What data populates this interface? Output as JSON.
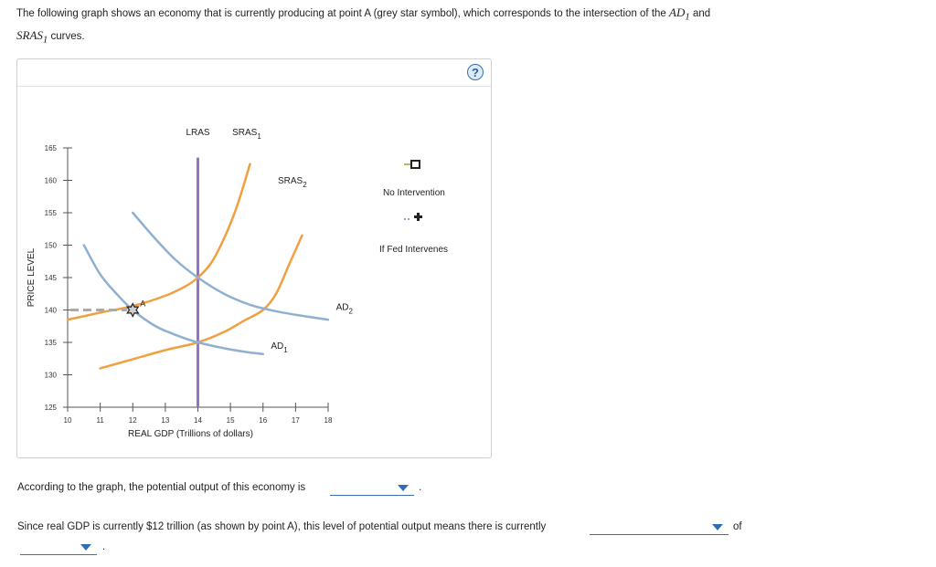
{
  "intro": {
    "text1": "The following graph shows an economy that is currently producing at point A (grey star symbol), which corresponds to the intersection of the ",
    "ad_symbol": "AD",
    "ad_sub": "1",
    "and": " and",
    "sras_symbol": "SRAS",
    "sras_sub": "1",
    "text2": " curves."
  },
  "help_label": "?",
  "legend": {
    "no_intervention": "No Intervention",
    "fed_intervenes": "If Fed Intervenes"
  },
  "questions": {
    "q1": "According to the graph, the potential output of this economy is",
    "q1_end": ".",
    "q2": "Since real GDP is currently $12 trillion (as shown by point A), this level of potential output means there is currently",
    "q2_end": "of",
    "q3_end": "."
  },
  "colors": {
    "ad": "#8fb0d0",
    "sras": "#f0a040",
    "lras": "#9b6fd0",
    "dashed": "#aaaaaa",
    "dropdown": "#2f6db6"
  },
  "chart_data": {
    "type": "line",
    "xlabel": "REAL GDP (Trillions of dollars)",
    "ylabel": "PRICE LEVEL",
    "xlim": [
      10,
      18
    ],
    "ylim": [
      125,
      165
    ],
    "x_ticks": [
      10,
      11,
      12,
      13,
      14,
      15,
      16,
      17,
      18
    ],
    "y_ticks": [
      125,
      130,
      135,
      140,
      145,
      150,
      155,
      160,
      165
    ],
    "lras": {
      "label": "LRAS",
      "x": 14
    },
    "series": [
      {
        "name": "SRAS",
        "sub": "1",
        "kind": "sras",
        "points": [
          [
            10,
            138.5
          ],
          [
            11,
            139.6
          ],
          [
            12,
            140.6
          ],
          [
            13,
            142.2
          ],
          [
            13.6,
            143.6
          ],
          [
            14,
            145
          ],
          [
            14.4,
            147.2
          ],
          [
            14.8,
            151
          ],
          [
            15.2,
            156
          ],
          [
            15.6,
            162.5
          ]
        ]
      },
      {
        "name": "SRAS",
        "sub": "2",
        "kind": "sras",
        "points": [
          [
            11,
            131
          ],
          [
            12,
            132.4
          ],
          [
            13,
            133.8
          ],
          [
            14,
            135
          ],
          [
            14.8,
            136.6
          ],
          [
            15.4,
            138.3
          ],
          [
            16,
            140
          ],
          [
            16.4,
            142.5
          ],
          [
            16.8,
            147
          ],
          [
            17.2,
            151.5
          ]
        ]
      },
      {
        "name": "AD",
        "sub": "1",
        "kind": "ad",
        "points": [
          [
            10.5,
            150
          ],
          [
            11,
            145.5
          ],
          [
            11.5,
            142.5
          ],
          [
            12,
            140
          ],
          [
            12.7,
            137.5
          ],
          [
            13.4,
            136
          ],
          [
            14,
            135
          ],
          [
            14.8,
            134.1
          ],
          [
            15.5,
            133.5
          ],
          [
            16,
            133.2
          ]
        ]
      },
      {
        "name": "AD",
        "sub": "2",
        "kind": "ad",
        "points": [
          [
            12,
            155
          ],
          [
            12.6,
            151.5
          ],
          [
            13.3,
            147.8
          ],
          [
            14,
            145
          ],
          [
            14.8,
            142.5
          ],
          [
            15.6,
            140.8
          ],
          [
            16.4,
            139.8
          ],
          [
            17.2,
            139.1
          ],
          [
            18,
            138.5
          ]
        ]
      }
    ],
    "curve_labels": [
      {
        "text": "LRAS",
        "sub": "",
        "x": 14,
        "y": 167
      },
      {
        "text": "SRAS",
        "sub": "1",
        "x": 15.5,
        "y": 167
      },
      {
        "text": "SRAS",
        "sub": "2",
        "x": 16.9,
        "y": 159.5
      },
      {
        "text": "AD",
        "sub": "1",
        "x": 16.5,
        "y": 134
      },
      {
        "text": "AD",
        "sub": "2",
        "x": 18.5,
        "y": 140
      }
    ],
    "point_A": {
      "label": "A",
      "x": 12,
      "y": 140
    }
  }
}
